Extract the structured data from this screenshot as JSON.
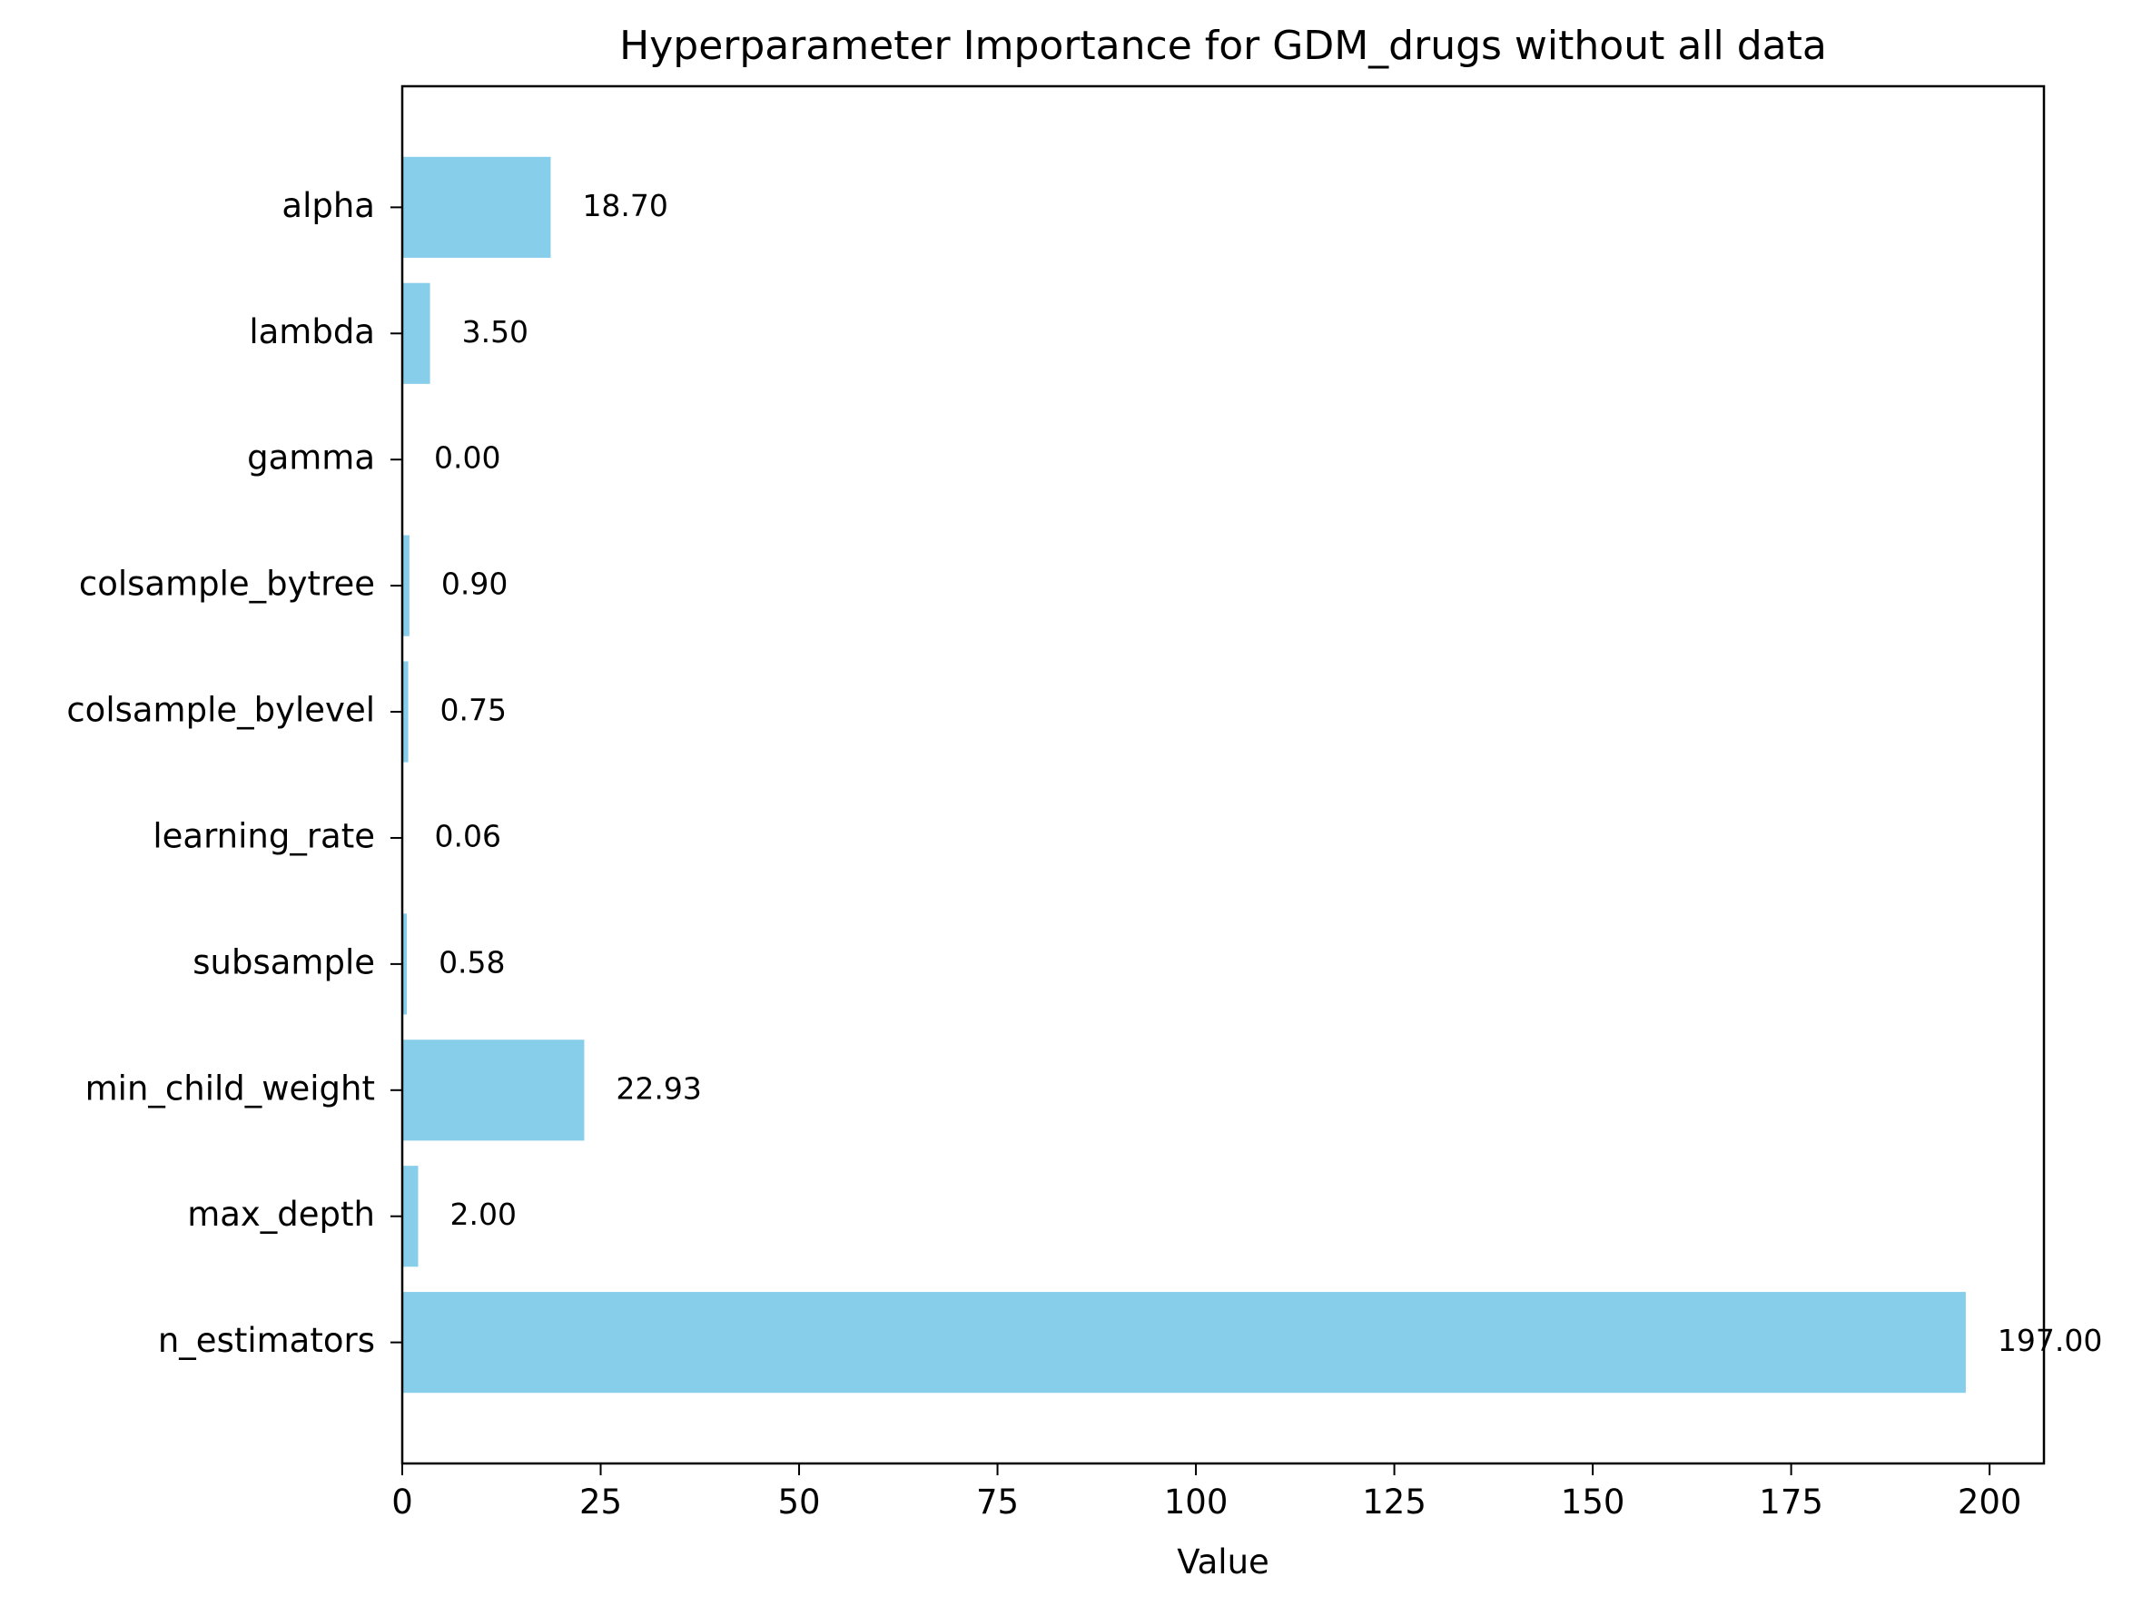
{
  "chart_data": {
    "type": "bar",
    "orientation": "horizontal",
    "title": "Hyperparameter Importance for GDM_drugs without all data",
    "xlabel": "Value",
    "ylabel": "",
    "categories": [
      "n_estimators",
      "max_depth",
      "min_child_weight",
      "subsample",
      "learning_rate",
      "colsample_bylevel",
      "colsample_bytree",
      "gamma",
      "lambda",
      "alpha"
    ],
    "values": [
      197.0,
      2.0,
      22.93,
      0.58,
      0.06,
      0.75,
      0.9,
      0.0,
      3.5,
      18.7
    ],
    "value_labels": [
      "197.00",
      "2.00",
      "22.93",
      "0.58",
      "0.06",
      "0.75",
      "0.90",
      "0.00",
      "3.50",
      "18.70"
    ],
    "xlim": [
      0,
      206.85
    ],
    "xticks": [
      0,
      25,
      50,
      75,
      100,
      125,
      150,
      175,
      200
    ],
    "bar_color": "#87CEEB",
    "grid": false,
    "legend": "none"
  }
}
